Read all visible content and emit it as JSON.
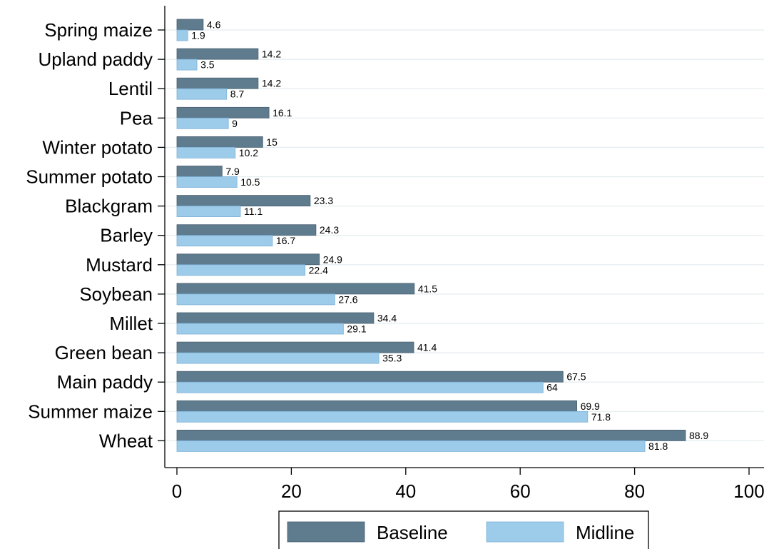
{
  "chart_data": {
    "type": "bar",
    "orientation": "horizontal",
    "categories": [
      "Spring maize",
      "Upland paddy",
      "Lentil",
      "Pea",
      "Winter potato",
      "Summer potato",
      "Blackgram",
      "Barley",
      "Mustard",
      "Soybean",
      "Millet",
      "Green bean",
      "Main paddy",
      "Summer maize",
      "Wheat"
    ],
    "series": [
      {
        "name": "Baseline",
        "color": "#5f7b8e",
        "values": [
          4.6,
          14.2,
          14.2,
          16.1,
          15,
          7.9,
          23.3,
          24.3,
          24.9,
          41.5,
          34.4,
          41.4,
          67.5,
          69.9,
          88.9
        ],
        "labels": [
          "4.6",
          "14.2",
          "14.2",
          "16.1",
          "15",
          "7.9",
          "23.3",
          "24.3",
          "24.9",
          "41.5",
          "34.4",
          "41.4",
          "67.5",
          "69.9",
          "88.9"
        ]
      },
      {
        "name": "Midline",
        "color": "#9dcbea",
        "values": [
          1.9,
          3.5,
          8.7,
          9,
          10.2,
          10.5,
          11.1,
          16.7,
          22.4,
          27.6,
          29.1,
          35.3,
          64,
          71.8,
          81.8
        ],
        "labels": [
          "1.9",
          "3.5",
          "8.7",
          "9",
          "10.2",
          "10.5",
          "11.1",
          "16.7",
          "22.4",
          "27.6",
          "29.1",
          "35.3",
          "64",
          "71.8",
          "81.8"
        ]
      }
    ],
    "xlim": [
      0,
      100
    ],
    "xticks": [
      "0",
      "20",
      "40",
      "60",
      "80",
      "100"
    ],
    "grid": true,
    "legend": "bottom",
    "title": "",
    "xlabel": "",
    "ylabel": ""
  }
}
